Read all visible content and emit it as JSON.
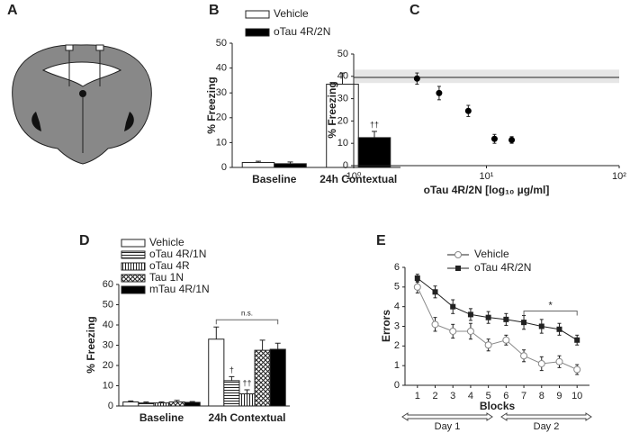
{
  "diagram": {
    "panel": "A"
  },
  "chart_data": [
    {
      "type": "bar",
      "panel": "B",
      "ylabel": "% Freezing",
      "categories": [
        "Baseline",
        "24h Contextual"
      ],
      "series": [
        {
          "name": "Vehicle",
          "color": "#ffffff",
          "values": [
            2,
            33.5
          ],
          "errors": [
            0.5,
            4.5
          ]
        },
        {
          "name": "oTau 4R/2N",
          "color": "#000000",
          "values": [
            1.5,
            12
          ],
          "errors": [
            0.7,
            2.5
          ]
        }
      ],
      "annotations": [
        {
          "text": "††",
          "category": 1,
          "series": 1
        }
      ],
      "ylim": [
        0,
        50
      ],
      "yticks": [
        0,
        10,
        20,
        30,
        40,
        50
      ]
    },
    {
      "type": "scatter",
      "panel": "C",
      "ylabel": "% Freezing",
      "xlabel": "oTau 4R/2N [log₁₀ µg/ml]",
      "x": [
        3,
        4.4,
        7.3,
        11.5,
        15.5
      ],
      "values": [
        39,
        32.5,
        24.5,
        12,
        11.5
      ],
      "errors": [
        2.5,
        3,
        2.5,
        2,
        1.5
      ],
      "color": "#000000",
      "band": [
        37,
        43
      ],
      "reference": 39.5,
      "band_color": "#e6e6e6",
      "xlog": true,
      "xlim": [
        1,
        100
      ],
      "xticks": [
        {
          "value": 1,
          "label": "10⁰"
        },
        {
          "value": 10,
          "label": "10¹"
        },
        {
          "value": 100,
          "label": "10²"
        }
      ],
      "ylim": [
        0,
        50
      ],
      "yticks": [
        0,
        10,
        20,
        30,
        40,
        50
      ]
    },
    {
      "type": "bar",
      "panel": "D",
      "ylabel": "% Freezing",
      "categories": [
        "Baseline",
        "24h Contextual"
      ],
      "series": [
        {
          "name": "Vehicle",
          "color": "#ffffff",
          "values": [
            2,
            33
          ],
          "errors": [
            0.5,
            6
          ]
        },
        {
          "name": "oTau 4R/1N",
          "color": "#ffffff",
          "hatch": "horizontal",
          "values": [
            1.5,
            12.5
          ],
          "errors": [
            0.5,
            2
          ]
        },
        {
          "name": "oTau 4R",
          "color": "#ffffff",
          "hatch": "vertical",
          "values": [
            1.5,
            6
          ],
          "errors": [
            0.5,
            2
          ]
        },
        {
          "name": "Tau 1N",
          "color": "#ffffff",
          "hatch": "crosshatch",
          "values": [
            2,
            27.5
          ],
          "errors": [
            0.8,
            5
          ]
        },
        {
          "name": "mTau 4R/1N",
          "color": "#000000",
          "values": [
            1.8,
            28
          ],
          "errors": [
            0.4,
            3
          ]
        }
      ],
      "annotations": [
        {
          "text": "†",
          "category": 1,
          "series": 1
        },
        {
          "text": "††",
          "category": 1,
          "series": 2
        },
        {
          "text": "n.s.",
          "category": 1,
          "series_span": [
            0,
            4
          ]
        }
      ],
      "ylim": [
        0,
        60
      ],
      "yticks": [
        0,
        10,
        20,
        30,
        40,
        50,
        60
      ]
    },
    {
      "type": "line",
      "panel": "E",
      "ylabel": "Errors",
      "xlabel": "Blocks",
      "x": [
        1,
        2,
        3,
        4,
        5,
        6,
        7,
        8,
        9,
        10
      ],
      "series": [
        {
          "name": "Vehicle",
          "color": "#888888",
          "marker": "circle",
          "values": [
            5.0,
            3.1,
            2.75,
            2.75,
            2.05,
            2.3,
            1.5,
            1.1,
            1.2,
            0.8
          ],
          "errors": [
            0.3,
            0.35,
            0.35,
            0.4,
            0.3,
            0.25,
            0.3,
            0.35,
            0.3,
            0.25
          ]
        },
        {
          "name": "oTau 4R/2N",
          "color": "#222222",
          "marker": "square",
          "values": [
            5.45,
            4.75,
            4.0,
            3.6,
            3.45,
            3.35,
            3.2,
            3.0,
            2.85,
            2.3
          ],
          "errors": [
            0.2,
            0.3,
            0.35,
            0.3,
            0.3,
            0.3,
            0.35,
            0.35,
            0.3,
            0.25
          ]
        }
      ],
      "brackets": [
        {
          "text": "*",
          "from": 7,
          "to": 10
        }
      ],
      "spans": [
        "Day 1",
        "Day 2"
      ],
      "xlim": [
        0.3,
        10.7
      ],
      "xticks": [
        1,
        2,
        3,
        4,
        5,
        6,
        7,
        8,
        9,
        10
      ],
      "ylim": [
        0,
        6
      ],
      "yticks": [
        0,
        1,
        2,
        3,
        4,
        5,
        6
      ]
    }
  ]
}
